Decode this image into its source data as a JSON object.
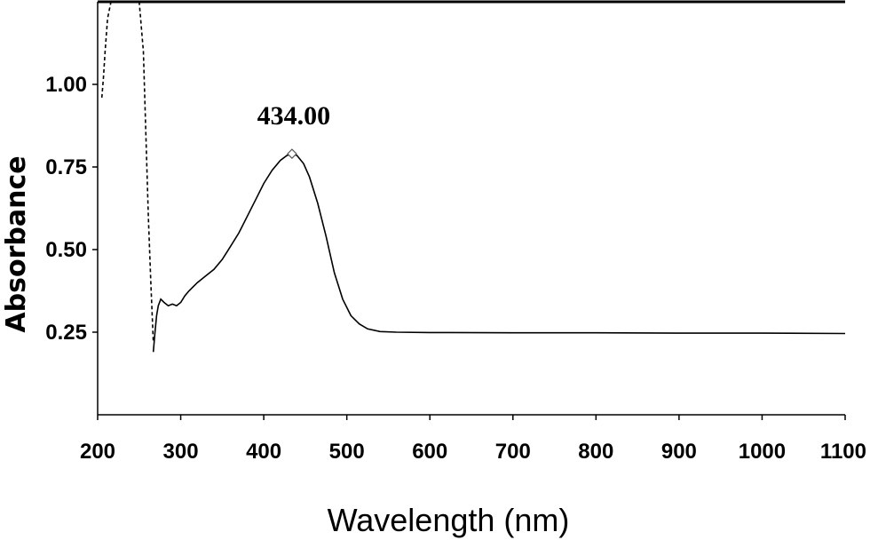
{
  "chart_data": {
    "type": "line",
    "title": "",
    "xlabel": "Wavelength (nm)",
    "ylabel": "Absorbance",
    "xlim": [
      200,
      1100
    ],
    "ylim": [
      0.0,
      1.25
    ],
    "x_ticks": [
      "200",
      "300",
      "400",
      "500",
      "600",
      "700",
      "800",
      "900",
      "1000",
      "1100"
    ],
    "y_ticks": [
      "0.25",
      "0.50",
      "0.75",
      "1.00"
    ],
    "x_tick_values": [
      200,
      300,
      400,
      500,
      600,
      700,
      800,
      900,
      1000,
      1100
    ],
    "y_tick_values": [
      0.25,
      0.5,
      0.75,
      1.0
    ],
    "grid": false,
    "annotation": {
      "text": "434.00",
      "x": 434,
      "y": 0.79
    },
    "series": [
      {
        "style": "dashed",
        "x": [
          205,
          207,
          209,
          212,
          216,
          220,
          225,
          235,
          245,
          250,
          255,
          258,
          261,
          264,
          267
        ],
        "y": [
          0.96,
          1.02,
          1.1,
          1.2,
          1.25,
          1.25,
          1.25,
          1.25,
          1.25,
          1.25,
          1.1,
          0.85,
          0.6,
          0.4,
          0.22
        ]
      },
      {
        "style": "solid",
        "x": [
          267,
          269,
          271,
          273,
          276,
          280,
          285,
          290,
          295,
          300,
          305,
          310,
          320,
          330,
          340,
          350,
          360,
          370,
          380,
          390,
          400,
          410,
          420,
          428,
          434,
          440,
          448,
          455,
          465,
          475,
          485,
          495,
          505,
          515,
          525,
          540,
          560,
          600,
          700,
          800,
          900,
          1000,
          1100
        ],
        "y": [
          0.19,
          0.25,
          0.3,
          0.33,
          0.35,
          0.34,
          0.33,
          0.335,
          0.33,
          0.34,
          0.36,
          0.375,
          0.4,
          0.42,
          0.44,
          0.47,
          0.51,
          0.55,
          0.6,
          0.65,
          0.7,
          0.74,
          0.77,
          0.785,
          0.79,
          0.785,
          0.76,
          0.72,
          0.64,
          0.54,
          0.43,
          0.35,
          0.3,
          0.275,
          0.26,
          0.252,
          0.25,
          0.249,
          0.248,
          0.248,
          0.247,
          0.247,
          0.246
        ]
      }
    ]
  }
}
